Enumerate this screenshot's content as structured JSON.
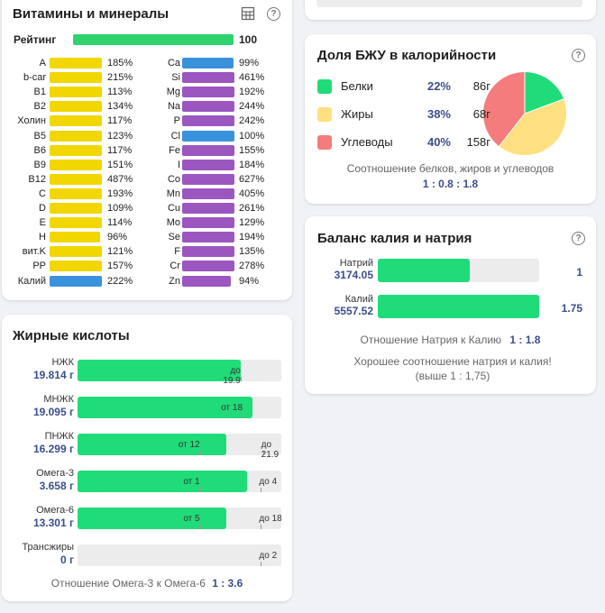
{
  "vitamins": {
    "title": "Витамины и минералы",
    "rating_label": "Рейтинг",
    "rating_value": "100",
    "rating_fill": 1.0,
    "left": [
      {
        "label": "A",
        "pct": "185%",
        "color": "#f2d600",
        "fill": 0.95
      },
      {
        "label": "b-car",
        "pct": "215%",
        "color": "#f2d600",
        "fill": 0.95
      },
      {
        "label": "B1",
        "pct": "113%",
        "color": "#f2d600",
        "fill": 0.95
      },
      {
        "label": "B2",
        "pct": "134%",
        "color": "#f2d600",
        "fill": 0.95
      },
      {
        "label": "Холин",
        "pct": "117%",
        "color": "#f2d600",
        "fill": 0.95
      },
      {
        "label": "B5",
        "pct": "123%",
        "color": "#f2d600",
        "fill": 0.95
      },
      {
        "label": "B6",
        "pct": "117%",
        "color": "#f2d600",
        "fill": 0.95
      },
      {
        "label": "B9",
        "pct": "151%",
        "color": "#f2d600",
        "fill": 0.95
      },
      {
        "label": "B12",
        "pct": "487%",
        "color": "#f2d600",
        "fill": 0.95
      },
      {
        "label": "C",
        "pct": "193%",
        "color": "#f2d600",
        "fill": 0.95
      },
      {
        "label": "D",
        "pct": "109%",
        "color": "#f2d600",
        "fill": 0.95
      },
      {
        "label": "E",
        "pct": "114%",
        "color": "#f2d600",
        "fill": 0.95
      },
      {
        "label": "H",
        "pct": "96%",
        "color": "#f2d600",
        "fill": 0.91
      },
      {
        "label": "вит.K",
        "pct": "121%",
        "color": "#f2d600",
        "fill": 0.95
      },
      {
        "label": "PP",
        "pct": "157%",
        "color": "#f2d600",
        "fill": 0.95
      },
      {
        "label": "Калий",
        "pct": "222%",
        "color": "#3b92dc",
        "fill": 0.95
      }
    ],
    "right": [
      {
        "label": "Ca",
        "pct": "99%",
        "color": "#3b92dc",
        "fill": 0.94
      },
      {
        "label": "Si",
        "pct": "461%",
        "color": "#9b56c0",
        "fill": 0.95
      },
      {
        "label": "Mg",
        "pct": "192%",
        "color": "#9b56c0",
        "fill": 0.95
      },
      {
        "label": "Na",
        "pct": "244%",
        "color": "#9b56c0",
        "fill": 0.95
      },
      {
        "label": "P",
        "pct": "242%",
        "color": "#9b56c0",
        "fill": 0.95
      },
      {
        "label": "Cl",
        "pct": "100%",
        "color": "#3b92dc",
        "fill": 0.95
      },
      {
        "label": "Fe",
        "pct": "155%",
        "color": "#9b56c0",
        "fill": 0.95
      },
      {
        "label": "I",
        "pct": "184%",
        "color": "#9b56c0",
        "fill": 0.95
      },
      {
        "label": "Co",
        "pct": "627%",
        "color": "#9b56c0",
        "fill": 0.95
      },
      {
        "label": "Mn",
        "pct": "405%",
        "color": "#9b56c0",
        "fill": 0.95
      },
      {
        "label": "Cu",
        "pct": "261%",
        "color": "#9b56c0",
        "fill": 0.95
      },
      {
        "label": "Mo",
        "pct": "129%",
        "color": "#9b56c0",
        "fill": 0.95
      },
      {
        "label": "Se",
        "pct": "194%",
        "color": "#9b56c0",
        "fill": 0.95
      },
      {
        "label": "F",
        "pct": "135%",
        "color": "#9b56c0",
        "fill": 0.95
      },
      {
        "label": "Cr",
        "pct": "278%",
        "color": "#9b56c0",
        "fill": 0.95
      },
      {
        "label": "Zn",
        "pct": "94%",
        "color": "#9b56c0",
        "fill": 0.89
      }
    ]
  },
  "fatty": {
    "title": "Жирные кислоты",
    "rows": [
      {
        "name": "НЖК",
        "value": "19.814 г",
        "fill": 0.8,
        "marks": [
          {
            "text": "до 19.9",
            "pos": 0.8
          }
        ]
      },
      {
        "name": "МНЖК",
        "value": "19.095 г",
        "fill": 0.86,
        "marks": [
          {
            "text": "от 18",
            "pos": 0.81
          }
        ]
      },
      {
        "name": "ПНЖК",
        "value": "16.299 г",
        "fill": 0.73,
        "marks": [
          {
            "text": "от 12",
            "pos": 0.6
          },
          {
            "text": "до 21.9",
            "pos": 0.91
          }
        ]
      },
      {
        "name": "Омега-3",
        "value": "3.658 г",
        "fill": 0.83,
        "marks": [
          {
            "text": "от 1",
            "pos": 0.6
          },
          {
            "text": "до 4",
            "pos": 0.9
          }
        ]
      },
      {
        "name": "Омега-6",
        "value": "13.301 г",
        "fill": 0.73,
        "marks": [
          {
            "text": "от 5",
            "pos": 0.6
          },
          {
            "text": "до 18",
            "pos": 0.9
          }
        ]
      },
      {
        "name": "Трансжиры",
        "value": "0 г",
        "fill": 0,
        "marks": [
          {
            "text": "до 2",
            "pos": 0.9
          }
        ]
      }
    ],
    "ratio_label": "Отношение Омега-3 к Омега-6",
    "ratio_value": "1 : 3.6"
  },
  "bju": {
    "title": "Доля БЖУ в калорийности",
    "rows": [
      {
        "name": "Белки",
        "pct": "22%",
        "grams": "86г",
        "color": "#1fdc78"
      },
      {
        "name": "Жиры",
        "pct": "38%",
        "grams": "68г",
        "color": "#ffe080"
      },
      {
        "name": "Углеводы",
        "pct": "40%",
        "grams": "158г",
        "color": "#f47c7c"
      }
    ],
    "caption": "Соотношение белков, жиров и углеводов",
    "ratio": "1 : 0.8 : 1.8"
  },
  "balance": {
    "title": "Баланс калия и натрия",
    "rows": [
      {
        "name": "Натрий",
        "value": "3174.05",
        "ratio": "1",
        "fill": 0.57
      },
      {
        "name": "Калий",
        "value": "5557.52",
        "ratio": "1.75",
        "fill": 1.0
      }
    ],
    "ratio_label": "Отношение Натрия к Калию",
    "ratio_value": "1 : 1.8",
    "note": "Хорошее соотношение натрия и калия! (выше 1 : 1,75)"
  },
  "help_glyph": "?"
}
